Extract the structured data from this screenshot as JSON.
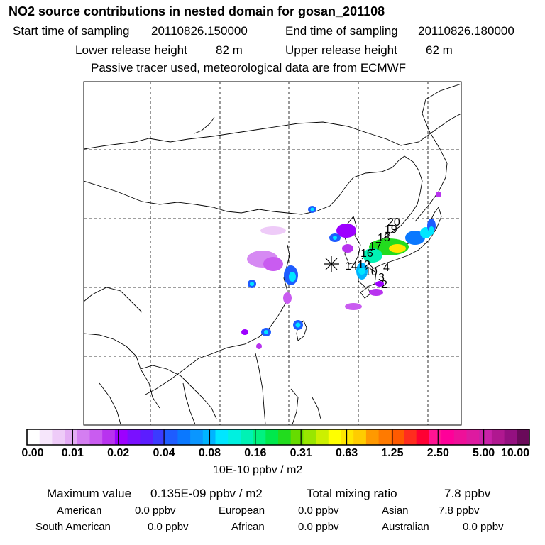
{
  "header": {
    "title": "NO2 source contributions in nested domain for gosan_201108",
    "start_label": "Start time of sampling",
    "start_value": "20110826.150000",
    "end_label": "End time of sampling",
    "end_value": "20110826.180000",
    "lower_label": "Lower release height",
    "lower_value": "82 m",
    "upper_label": "Upper release height",
    "upper_value": "62 m",
    "note": "Passive tracer used, meteorological data are from ECMWF"
  },
  "map": {
    "receptor_marker": "asterisk",
    "trajectory_labels": [
      "20",
      "19",
      "18",
      "17",
      "16",
      "14",
      "12",
      "10",
      "4",
      "3",
      "2"
    ],
    "colors": {
      "coast": "#000000",
      "grid": "#000000"
    }
  },
  "colorbar": {
    "tick_labels": [
      "0.00",
      "0.01",
      "0.02",
      "0.04",
      "0.08",
      "0.16",
      "0.31",
      "0.63",
      "1.25",
      "2.50",
      "5.00",
      "10.00"
    ],
    "colors": [
      "#ffffff",
      "#f6e6fb",
      "#eecbf8",
      "#e3acf4",
      "#d47ef1",
      "#c95cf0",
      "#b833ef",
      "#9d00ff",
      "#7a10ff",
      "#5c1dff",
      "#3b3bff",
      "#1e5cff",
      "#0a78ff",
      "#0a96ff",
      "#00b4ff",
      "#00e6ff",
      "#00f0e0",
      "#00f2b4",
      "#00f280",
      "#00e84c",
      "#22dc1e",
      "#66dc00",
      "#99e600",
      "#ccf000",
      "#ffff00",
      "#ffe600",
      "#ffcc00",
      "#ff9900",
      "#ff7a00",
      "#ff5a00",
      "#ff2d1e",
      "#ff0033",
      "#ff1493",
      "#ff0099",
      "#ee1099",
      "#dd1aa0",
      "#c822a8",
      "#b01890",
      "#941080",
      "#6a0a5a"
    ],
    "unit": "10E-10 ppbv / m2"
  },
  "stats": {
    "max_label": "Maximum value",
    "max_value": "0.135E-09 ppbv / m2",
    "total_label": "Total mixing ratio",
    "total_value": "7.8 ppbv",
    "regions": [
      {
        "name": "American",
        "value": "0.0 ppbv"
      },
      {
        "name": "European",
        "value": "0.0 ppbv"
      },
      {
        "name": "Asian",
        "value": "7.8 ppbv"
      },
      {
        "name": "South American",
        "value": "0.0 ppbv"
      },
      {
        "name": "African",
        "value": "0.0 ppbv"
      },
      {
        "name": "Australian",
        "value": "0.0 ppbv"
      }
    ]
  }
}
